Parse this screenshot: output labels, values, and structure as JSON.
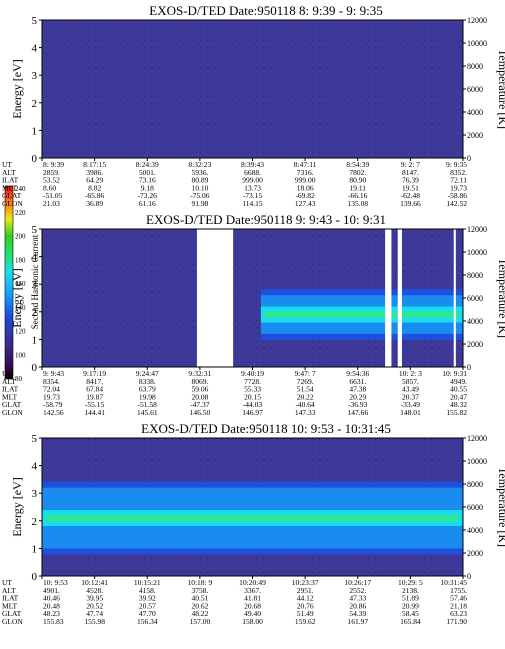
{
  "cbar": {
    "ticks": [
      "240",
      "220",
      "200",
      "180",
      "160",
      "140",
      "120",
      "100",
      "80"
    ],
    "label": "Second Harmonic Current"
  },
  "axes": {
    "ylabel": "Energy [eV]",
    "y2label": "Temperature [K]",
    "yticks": [
      "0",
      "1",
      "2",
      "3",
      "4",
      "5"
    ],
    "y2ticks": [
      "0",
      "2000",
      "4000",
      "6000",
      "8000",
      "10000",
      "12000"
    ]
  },
  "chart_data": [
    {
      "type": "heatmap",
      "title": "EXOS-D/TED   Date:950118  8: 9:39 - 9: 9:35",
      "ylabel": "Energy [eV]",
      "y2label": "Temperature [K]",
      "ylim": [
        0,
        5
      ],
      "y2lim": [
        0,
        12000
      ],
      "gaps": [],
      "band": null,
      "rows": [
        {
          "label": "UT",
          "values": [
            "8: 9:39",
            "8:17:15",
            "8:24:39",
            "8:32:23",
            "8:39:43",
            "8:47:11",
            "8:54:39",
            "9: 2: 7",
            "9: 9:35"
          ]
        },
        {
          "label": "ALT",
          "values": [
            "2859.",
            "3986.",
            "5001.",
            "5936.",
            "6688.",
            "7316.",
            "7802.",
            "8147.",
            "8352."
          ]
        },
        {
          "label": "ILAT",
          "values": [
            "53.52",
            "64.29",
            "73.16",
            "80.89",
            "999.00",
            "999.00",
            "80.90",
            "76.39",
            "72.11"
          ]
        },
        {
          "label": "MLT",
          "values": [
            "8.60",
            "8.82",
            "9.18",
            "10.10",
            "13.73",
            "18.06",
            "19.11",
            "19.51",
            "19.73"
          ]
        },
        {
          "label": "GLAT",
          "values": [
            "-51.05",
            "-65.86",
            "-73.26",
            "-75.06",
            "-73.15",
            "-69.82",
            "-66.16",
            "-62.48",
            "-58.86"
          ]
        },
        {
          "label": "GLON",
          "values": [
            "21.03",
            "36.89",
            "61.16",
            "91.98",
            "114.15",
            "127.43",
            "135.08",
            "139.66",
            "142.52"
          ]
        }
      ]
    },
    {
      "type": "heatmap",
      "title": "EXOS-D/TED   Date:950118  9: 9:43 - 10: 9:31",
      "ylabel": "Energy [eV]",
      "y2label": "Temperature [K]",
      "ylim": [
        0,
        5
      ],
      "y2lim": [
        0,
        12000
      ],
      "gaps": [
        [
          0.368,
          0.454
        ],
        [
          0.815,
          0.83
        ],
        [
          0.845,
          0.855
        ],
        [
          0.978,
          0.983
        ]
      ],
      "band": {
        "from": 0.52,
        "to": 1.0,
        "energy_low": 1.2,
        "energy_high": 2.6
      },
      "rows": [
        {
          "label": "UT",
          "values": [
            "9: 9:43",
            "9:17:19",
            "9:24:47",
            "9:32:31",
            "9:40:19",
            "9:47: 7",
            "9:54:36",
            "10: 2: 3",
            "10: 9:31"
          ]
        },
        {
          "label": "ALT",
          "values": [
            "8354.",
            "8417.",
            "8338.",
            "8069.",
            "7728.",
            "7269.",
            "6631.",
            "5857.",
            "4949."
          ]
        },
        {
          "label": "ILAT",
          "values": [
            "72.04",
            "67.84",
            "63.79",
            "59.06",
            "55.33",
            "51.54",
            "47.38",
            "43.49",
            "40.55"
          ]
        },
        {
          "label": "MLT",
          "values": [
            "19.73",
            "19.87",
            "19.98",
            "20.08",
            "20.15",
            "20.22",
            "20.29",
            "20.37",
            "20.47"
          ]
        },
        {
          "label": "GLAT",
          "values": [
            "-58.79",
            "-55.15",
            "-51.58",
            "-47.37",
            "-44.03",
            "-40.64",
            "-36.93",
            "-33.49",
            "48.32"
          ]
        },
        {
          "label": "GLON",
          "values": [
            "142.56",
            "144.41",
            "145.61",
            "146.50",
            "146.97",
            "147.33",
            "147.66",
            "148.01",
            "155.82"
          ]
        }
      ]
    },
    {
      "type": "heatmap",
      "title": "EXOS-D/TED   Date:950118  10: 9:53 - 10:31:45",
      "ylabel": "Energy [eV]",
      "y2label": "Temperature [K]",
      "ylim": [
        0,
        5
      ],
      "y2lim": [
        0,
        12000
      ],
      "gaps": [],
      "band": {
        "from": 0.0,
        "to": 1.0,
        "energy_low": 1.0,
        "energy_high": 3.2
      },
      "rows": [
        {
          "label": "UT",
          "values": [
            "10: 9:53",
            "10:12:41",
            "10:15:21",
            "10:18: 9",
            "10:20:49",
            "10:23:37",
            "10:26:17",
            "10:29: 5",
            "10:31:45"
          ]
        },
        {
          "label": "ALT",
          "values": [
            "4901.",
            "4528.",
            "4158.",
            "3758.",
            "3367.",
            "2951.",
            "2552.",
            "2138.",
            "1755."
          ]
        },
        {
          "label": "ILAT",
          "values": [
            "40.46",
            "39.95",
            "39.92",
            "40.51",
            "41.81",
            "44.12",
            "47.33",
            "51.89",
            "57.46"
          ]
        },
        {
          "label": "MLT",
          "values": [
            "20.48",
            "20.52",
            "20.57",
            "20.62",
            "20.68",
            "20.76",
            "20.86",
            "20.99",
            "21.18"
          ]
        },
        {
          "label": "GLAT",
          "values": [
            "48.23",
            "47.74",
            "47.70",
            "48.22",
            "49.40",
            "51.49",
            "54.39",
            "58.45",
            "63.23"
          ]
        },
        {
          "label": "GLON",
          "values": [
            "155.83",
            "155.98",
            "156.34",
            "157.00",
            "158.00",
            "159.62",
            "161.97",
            "165.84",
            "171.90"
          ]
        }
      ]
    }
  ]
}
